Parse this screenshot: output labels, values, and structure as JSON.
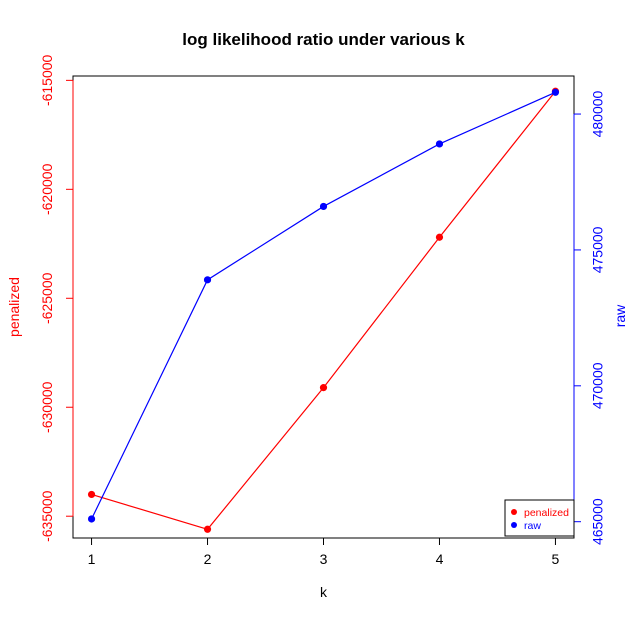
{
  "chart_data": {
    "type": "line",
    "title": "log likelihood ratio under various k",
    "xlabel": "k",
    "x": [
      1,
      2,
      3,
      4,
      5
    ],
    "x_ticks": [
      "1",
      "2",
      "3",
      "4",
      "5"
    ],
    "xlim": [
      0.84,
      5.16
    ],
    "series": [
      {
        "name": "penalized",
        "axis": "left",
        "color": "#ff0000",
        "values": [
          -634000,
          -635600,
          -629100,
          -622200,
          -615500
        ]
      },
      {
        "name": "raw",
        "axis": "right",
        "color": "#0000ff",
        "values": [
          465100,
          473900,
          476600,
          478900,
          480800
        ]
      }
    ],
    "y_left": {
      "label": "penalized",
      "ticks": [
        "-615000",
        "-620000",
        "-625000",
        "-630000",
        "-635000"
      ],
      "tick_values": [
        -615000,
        -620000,
        -625000,
        -630000,
        -635000
      ],
      "ylim": [
        -636000,
        -614800
      ]
    },
    "y_right": {
      "label": "raw",
      "ticks": [
        "465000",
        "470000",
        "475000",
        "480000"
      ],
      "tick_values": [
        465000,
        470000,
        475000,
        480000
      ],
      "ylim": [
        464400,
        481400
      ]
    },
    "legend": {
      "position": "bottom-right",
      "entries": [
        "penalized",
        "raw"
      ]
    },
    "grid": false
  }
}
